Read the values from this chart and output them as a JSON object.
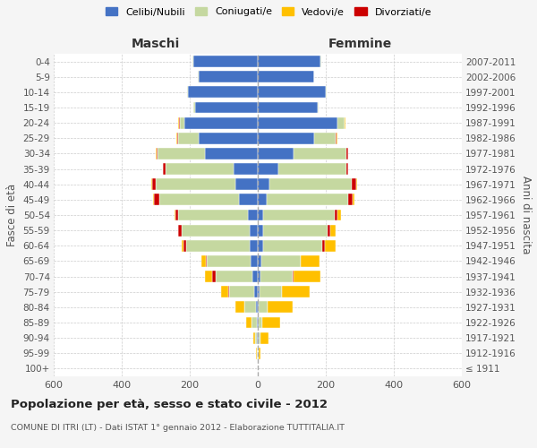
{
  "age_groups": [
    "100+",
    "95-99",
    "90-94",
    "85-89",
    "80-84",
    "75-79",
    "70-74",
    "65-69",
    "60-64",
    "55-59",
    "50-54",
    "45-49",
    "40-44",
    "35-39",
    "30-34",
    "25-29",
    "20-24",
    "15-19",
    "10-14",
    "5-9",
    "0-4"
  ],
  "birth_years": [
    "≤ 1911",
    "1912-1916",
    "1917-1921",
    "1922-1926",
    "1927-1931",
    "1932-1936",
    "1937-1941",
    "1942-1946",
    "1947-1951",
    "1952-1956",
    "1957-1961",
    "1962-1966",
    "1967-1971",
    "1972-1976",
    "1977-1981",
    "1982-1986",
    "1987-1991",
    "1992-1996",
    "1997-2001",
    "2002-2006",
    "2007-2011"
  ],
  "males": {
    "celibi": [
      0,
      0,
      2,
      3,
      5,
      10,
      15,
      20,
      25,
      25,
      30,
      55,
      65,
      70,
      155,
      175,
      215,
      185,
      205,
      175,
      190
    ],
    "coniugati": [
      0,
      3,
      5,
      15,
      35,
      75,
      110,
      130,
      185,
      200,
      205,
      235,
      235,
      200,
      140,
      60,
      15,
      5,
      2,
      1,
      1
    ],
    "vedovi": [
      0,
      2,
      5,
      15,
      25,
      20,
      20,
      15,
      5,
      2,
      2,
      2,
      2,
      2,
      2,
      2,
      1,
      0,
      0,
      0,
      0
    ],
    "divorziati": [
      0,
      0,
      0,
      0,
      0,
      2,
      10,
      2,
      8,
      8,
      8,
      15,
      10,
      8,
      2,
      2,
      2,
      0,
      0,
      0,
      0
    ]
  },
  "females": {
    "nubili": [
      0,
      0,
      2,
      2,
      3,
      5,
      8,
      10,
      15,
      15,
      15,
      25,
      35,
      60,
      105,
      165,
      235,
      175,
      200,
      165,
      185
    ],
    "coniugate": [
      0,
      3,
      5,
      10,
      25,
      65,
      95,
      115,
      175,
      190,
      210,
      240,
      240,
      200,
      155,
      65,
      20,
      5,
      2,
      1,
      1
    ],
    "vedove": [
      0,
      5,
      25,
      55,
      75,
      80,
      80,
      55,
      30,
      15,
      10,
      5,
      3,
      2,
      2,
      2,
      1,
      0,
      0,
      0,
      0
    ],
    "divorziate": [
      0,
      0,
      0,
      0,
      0,
      2,
      2,
      2,
      8,
      8,
      10,
      15,
      15,
      5,
      5,
      2,
      1,
      0,
      0,
      0,
      0
    ]
  },
  "colors": {
    "celibi_nubili": "#4472c4",
    "coniugati": "#c5d8a0",
    "vedovi": "#ffc000",
    "divorziati": "#cc0000"
  },
  "xlim": 600,
  "xlabel_left": "Maschi",
  "xlabel_right": "Femmine",
  "ylabel_left": "Fasce di età",
  "ylabel_right": "Anni di nascita",
  "title": "Popolazione per età, sesso e stato civile - 2012",
  "subtitle": "COMUNE DI ITRI (LT) - Dati ISTAT 1° gennaio 2012 - Elaborazione TUTTITALIA.IT",
  "legend_labels": [
    "Celibi/Nubili",
    "Coniugati/e",
    "Vedovi/e",
    "Divorziati/e"
  ],
  "bg_color": "#f5f5f5",
  "plot_bg_color": "#ffffff",
  "grid_color": "#cccccc"
}
